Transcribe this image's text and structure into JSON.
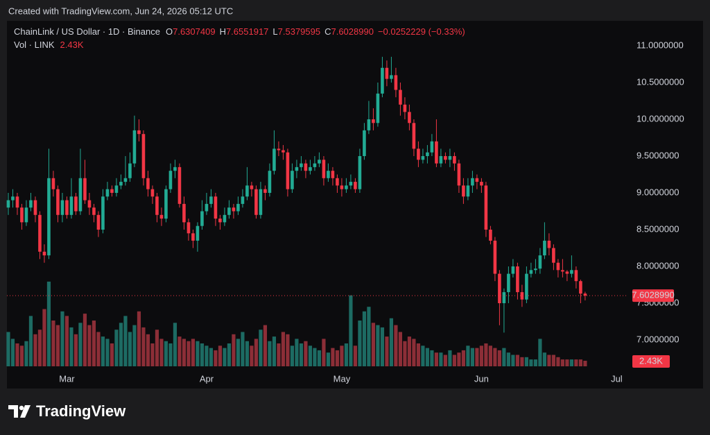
{
  "header": "Created with TradingView.com, Jun 24, 2026 05:12 UTC",
  "footer_logo": "TradingView",
  "chart_data": {
    "type": "candlestick",
    "title": "ChainLink / US Dollar · 1D · Binance",
    "ohlc_legend": [
      {
        "key": "O",
        "value": "7.6307409"
      },
      {
        "key": "H",
        "value": "7.6551917"
      },
      {
        "key": "L",
        "value": "7.5379595"
      },
      {
        "key": "C",
        "value": "7.6028990"
      }
    ],
    "change": "−0.0252229 (−0.33%)",
    "last_close_label": "7.6028990",
    "up_color": "#22ab94",
    "down_color": "#f23645",
    "xlim": [
      -0.3,
      137.4
    ],
    "xticks": [
      {
        "value": 13,
        "label": "Mar"
      },
      {
        "value": 44,
        "label": "Apr"
      },
      {
        "value": 74,
        "label": "May"
      },
      {
        "value": 105,
        "label": "Jun"
      },
      {
        "value": 135,
        "label": "Jul"
      }
    ],
    "ylim": [
      6.585,
      11.245
    ],
    "yticks": [
      {
        "value": 7,
        "label": "7.0000000"
      },
      {
        "value": 7.5,
        "label": "7.5000000"
      },
      {
        "value": 8,
        "label": "8.0000000"
      },
      {
        "value": 8.5,
        "label": "8.5000000"
      },
      {
        "value": 9,
        "label": "9.0000000"
      },
      {
        "value": 9.5,
        "label": "9.5000000"
      },
      {
        "value": 10,
        "label": "10.0000000"
      },
      {
        "value": 10.5,
        "label": "10.5000000"
      },
      {
        "value": 11,
        "label": "11.0000000"
      }
    ],
    "grid": false,
    "open": [
      8.8,
      8.9,
      8.95,
      8.8,
      8.6,
      8.8,
      8.9,
      8.7,
      8.2,
      8.15,
      9.2,
      9.05,
      8.7,
      8.9,
      8.7,
      8.95,
      8.75,
      9.2,
      8.9,
      8.8,
      8.7,
      8.5,
      8.95,
      9.05,
      9.0,
      9.1,
      9.15,
      9.2,
      9.4,
      9.85,
      9.8,
      9.2,
      9.05,
      8.95,
      8.7,
      8.65,
      9.05,
      9.3,
      9.35,
      8.85,
      8.6,
      8.45,
      8.35,
      8.55,
      8.75,
      8.85,
      8.95,
      8.65,
      8.6,
      8.7,
      8.8,
      8.75,
      8.85,
      8.95,
      9.1,
      9.05,
      8.7,
      9.05,
      9.0,
      9.3,
      9.6,
      9.58,
      9.55,
      9.05,
      9.3,
      9.35,
      9.4,
      9.3,
      9.35,
      9.4,
      9.45,
      9.2,
      9.3,
      9.2,
      9.1,
      9.05,
      9.1,
      9.15,
      9.05,
      9.5,
      9.85,
      10.0,
      9.95,
      10.35,
      10.7,
      10.55,
      10.6,
      10.4,
      10.2,
      10.1,
      9.95,
      9.6,
      9.45,
      9.5,
      9.55,
      9.7,
      9.4,
      9.5,
      9.45,
      9.5,
      9.4,
      9.1,
      8.95,
      9.1,
      9.2,
      9.15,
      9.1,
      8.5,
      8.35,
      7.9,
      7.5,
      7.65,
      7.9,
      8.0,
      7.65,
      7.55,
      7.9,
      7.95,
      7.97,
      8.15,
      8.35,
      8.25,
      8.05,
      7.95,
      7.93,
      7.9,
      7.95,
      7.8,
      7.6307409
    ],
    "high": [
      9.0,
      9.05,
      9.0,
      8.85,
      8.9,
      9.0,
      8.95,
      8.75,
      8.3,
      9.6,
      9.3,
      9.1,
      9.0,
      8.95,
      9.2,
      9.0,
      9.6,
      9.45,
      9.0,
      8.85,
      8.75,
      9.05,
      9.15,
      9.1,
      9.2,
      9.25,
      9.5,
      9.55,
      10.05,
      10.0,
      9.85,
      9.3,
      9.1,
      9.0,
      8.8,
      9.1,
      9.4,
      9.45,
      9.4,
      8.95,
      8.65,
      8.5,
      8.6,
      8.9,
      9.0,
      9.05,
      9.0,
      8.7,
      8.8,
      8.9,
      8.85,
      8.95,
      9.05,
      9.35,
      9.15,
      9.1,
      9.15,
      9.1,
      9.4,
      9.85,
      9.7,
      9.65,
      9.6,
      9.4,
      9.45,
      9.5,
      9.45,
      9.45,
      9.5,
      9.55,
      9.5,
      9.4,
      9.35,
      9.25,
      9.2,
      9.2,
      9.25,
      9.2,
      9.6,
      9.95,
      10.25,
      10.15,
      10.5,
      10.85,
      10.8,
      10.85,
      10.7,
      10.5,
      10.3,
      10.2,
      10.0,
      9.7,
      9.6,
      9.65,
      9.8,
      10.0,
      9.6,
      9.55,
      9.6,
      9.55,
      9.45,
      9.2,
      9.2,
      9.3,
      9.25,
      9.2,
      9.15,
      8.55,
      8.4,
      7.95,
      7.7,
      8.0,
      8.1,
      8.05,
      7.75,
      8.0,
      8.05,
      8.1,
      8.25,
      8.6,
      8.45,
      8.3,
      8.1,
      8.1,
      7.95,
      8.15,
      8.0,
      7.82,
      7.6551917
    ],
    "low": [
      8.7,
      8.8,
      8.7,
      8.5,
      8.55,
      8.75,
      8.6,
      8.1,
      8.05,
      8.1,
      8.95,
      8.6,
      8.6,
      8.65,
      8.65,
      8.7,
      8.7,
      8.85,
      8.7,
      8.6,
      8.4,
      8.45,
      8.9,
      8.95,
      8.95,
      9.05,
      9.1,
      9.15,
      9.35,
      9.7,
      9.1,
      8.95,
      8.85,
      8.6,
      8.55,
      8.6,
      9.0,
      9.2,
      8.8,
      8.5,
      8.35,
      8.25,
      8.2,
      8.5,
      8.7,
      8.8,
      8.55,
      8.5,
      8.55,
      8.65,
      8.65,
      8.7,
      8.8,
      8.9,
      8.95,
      8.65,
      8.65,
      8.9,
      8.95,
      9.25,
      9.5,
      9.45,
      8.95,
      9.0,
      9.2,
      9.3,
      9.2,
      9.25,
      9.3,
      9.35,
      9.1,
      9.15,
      9.1,
      9.0,
      8.95,
      9.0,
      9.05,
      9.0,
      9.0,
      9.45,
      9.8,
      9.85,
      9.9,
      10.3,
      10.45,
      10.5,
      10.3,
      10.05,
      10.0,
      9.85,
      9.5,
      9.35,
      9.4,
      9.4,
      9.5,
      9.35,
      9.35,
      9.4,
      9.35,
      9.3,
      9.0,
      8.85,
      8.9,
      9.0,
      9.05,
      9.0,
      8.4,
      8.3,
      7.8,
      7.2,
      7.1,
      7.5,
      7.85,
      7.55,
      7.45,
      7.5,
      7.85,
      7.9,
      7.9,
      8.1,
      8.15,
      7.95,
      7.85,
      7.85,
      7.8,
      7.85,
      7.7,
      7.5,
      7.5379595
    ],
    "close": [
      8.9,
      8.95,
      8.8,
      8.6,
      8.8,
      8.9,
      8.7,
      8.2,
      8.15,
      9.2,
      9.05,
      8.7,
      8.9,
      8.7,
      8.95,
      8.75,
      9.2,
      8.9,
      8.8,
      8.7,
      8.5,
      8.95,
      9.05,
      9.0,
      9.1,
      9.15,
      9.2,
      9.4,
      9.85,
      9.8,
      9.2,
      9.05,
      8.95,
      8.7,
      8.65,
      9.05,
      9.3,
      9.35,
      8.85,
      8.6,
      8.45,
      8.35,
      8.55,
      8.75,
      8.85,
      8.95,
      8.65,
      8.6,
      8.7,
      8.8,
      8.75,
      8.85,
      8.95,
      9.1,
      9.05,
      8.7,
      9.05,
      9.0,
      9.3,
      9.6,
      9.58,
      9.55,
      9.05,
      9.3,
      9.35,
      9.4,
      9.3,
      9.35,
      9.4,
      9.45,
      9.2,
      9.3,
      9.2,
      9.1,
      9.05,
      9.1,
      9.15,
      9.05,
      9.5,
      9.85,
      10.0,
      9.95,
      10.35,
      10.7,
      10.55,
      10.6,
      10.4,
      10.2,
      10.1,
      9.95,
      9.6,
      9.45,
      9.5,
      9.55,
      9.7,
      9.4,
      9.5,
      9.45,
      9.5,
      9.4,
      9.1,
      8.95,
      9.1,
      9.2,
      9.15,
      9.1,
      8.5,
      8.35,
      7.9,
      7.5,
      7.65,
      7.9,
      8.0,
      7.65,
      7.55,
      7.9,
      7.95,
      7.97,
      8.15,
      8.35,
      8.25,
      8.05,
      7.95,
      7.93,
      7.9,
      7.95,
      7.8,
      7.63,
      7.602899
    ],
    "volume": {
      "name": "Vol · LINK",
      "ylim": [
        0,
        40000
      ],
      "last_label": "2.43K",
      "up_color": "#1d6b63",
      "down_color": "#8c2e37",
      "values": [
        15000,
        12000,
        10000,
        9000,
        11000,
        22000,
        14000,
        16000,
        25000,
        37000,
        20000,
        18000,
        24000,
        22000,
        17000,
        14000,
        19000,
        23000,
        18000,
        20000,
        15000,
        13000,
        12000,
        10000,
        16000,
        19000,
        22000,
        15000,
        18000,
        24000,
        17000,
        14000,
        10000,
        16000,
        12000,
        11000,
        10000,
        19000,
        13000,
        12000,
        11000,
        12000,
        11000,
        10000,
        9000,
        8000,
        7000,
        9000,
        8000,
        10000,
        14000,
        12000,
        15000,
        11000,
        9000,
        12000,
        16000,
        18000,
        11000,
        13000,
        10000,
        15000,
        14000,
        9000,
        12000,
        10000,
        11000,
        9000,
        8000,
        7000,
        12000,
        6000,
        8000,
        7000,
        9000,
        10000,
        31000,
        9000,
        20000,
        24000,
        26000,
        19000,
        18000,
        17000,
        13000,
        21000,
        18000,
        15000,
        11000,
        13000,
        12000,
        10000,
        9000,
        8000,
        7000,
        6000,
        6000,
        5000,
        7000,
        5000,
        6000,
        7000,
        9000,
        8000,
        8000,
        9000,
        10000,
        9000,
        8000,
        7000,
        8000,
        6000,
        5000,
        5000,
        4000,
        4000,
        3000,
        3000,
        12000,
        6000,
        5000,
        5000,
        4000,
        3000,
        3000,
        3000,
        3000,
        3000,
        2430
      ]
    }
  }
}
